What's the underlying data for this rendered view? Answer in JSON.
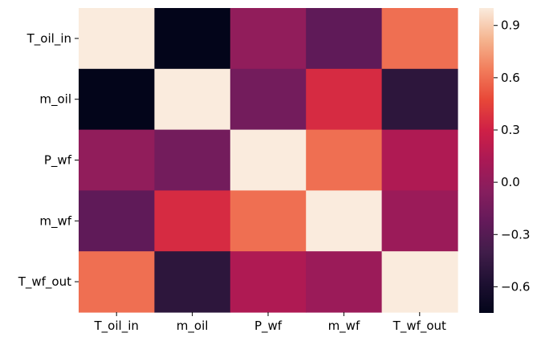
{
  "chart_data": {
    "type": "heatmap",
    "rows": [
      "T_oil_in",
      "m_oil",
      "P_wf",
      "m_wf",
      "T_wf_out"
    ],
    "columns": [
      "T_oil_in",
      "m_oil",
      "P_wf",
      "m_wf",
      "T_wf_out"
    ],
    "values": [
      [
        1.0,
        -0.75,
        0.0,
        -0.25,
        0.6
      ],
      [
        -0.75,
        1.0,
        -0.15,
        0.35,
        -0.5
      ],
      [
        0.0,
        -0.15,
        1.0,
        0.6,
        0.15
      ],
      [
        -0.25,
        0.35,
        0.6,
        1.0,
        0.05
      ],
      [
        0.6,
        -0.5,
        0.15,
        0.05,
        1.0
      ]
    ],
    "colorbar": {
      "range": [
        -0.75,
        1.0
      ],
      "ticks": [
        0.9,
        0.6,
        0.3,
        0.0,
        -0.3,
        -0.6
      ],
      "tick_labels": [
        "0.9",
        "0.6",
        "0.3",
        "0.0",
        "−0.3",
        "−0.6"
      ]
    },
    "colormap": "rocket",
    "grid": false
  }
}
